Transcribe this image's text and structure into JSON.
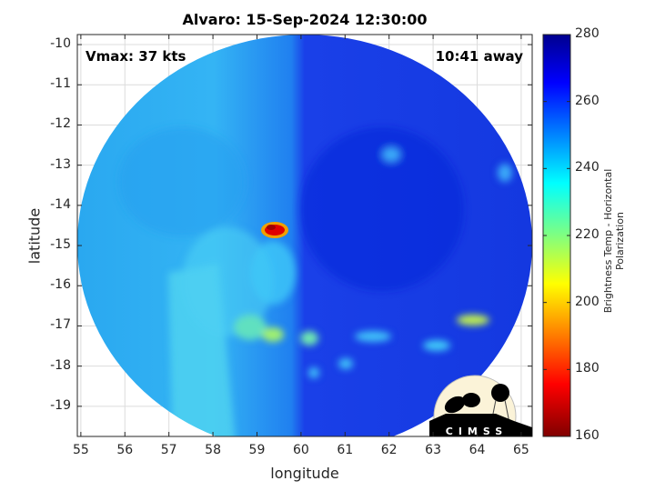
{
  "chart_data": {
    "type": "heatmap",
    "title": "Alvaro: 15-Sep-2024 12:30:00",
    "xlabel": "longitude",
    "ylabel": "latitude",
    "xlim": [
      54.92,
      65.25
    ],
    "ylim": [
      -19.75,
      -9.75
    ],
    "xticks": [
      "55",
      "56",
      "57",
      "58",
      "59",
      "60",
      "61",
      "62",
      "63",
      "64",
      "65"
    ],
    "yticks": [
      "-10",
      "-11",
      "-12",
      "-13",
      "-14",
      "-15",
      "-16",
      "-17",
      "-18",
      "-19"
    ],
    "grid": true,
    "colorbar": {
      "label": "Brightness Temp - Horizontal Polarization",
      "range": [
        160,
        280
      ],
      "ticks": [
        "280",
        "260",
        "240",
        "220",
        "200",
        "180",
        "160"
      ],
      "colormap": "jet"
    },
    "annotations": {
      "vmax": "Vmax: 37 kts",
      "away": "10:41 away"
    },
    "features": [
      {
        "name": "warm core minimum",
        "lon": 59.4,
        "lat": -14.6,
        "value": 170
      },
      {
        "name": "rainband south",
        "lon": 60.5,
        "lat": -17.3,
        "value": 225
      },
      {
        "name": "rainband southeast",
        "lon": 64.0,
        "lat": -16.9,
        "value": 215
      }
    ]
  },
  "logo": {
    "text": "CIMSS"
  }
}
